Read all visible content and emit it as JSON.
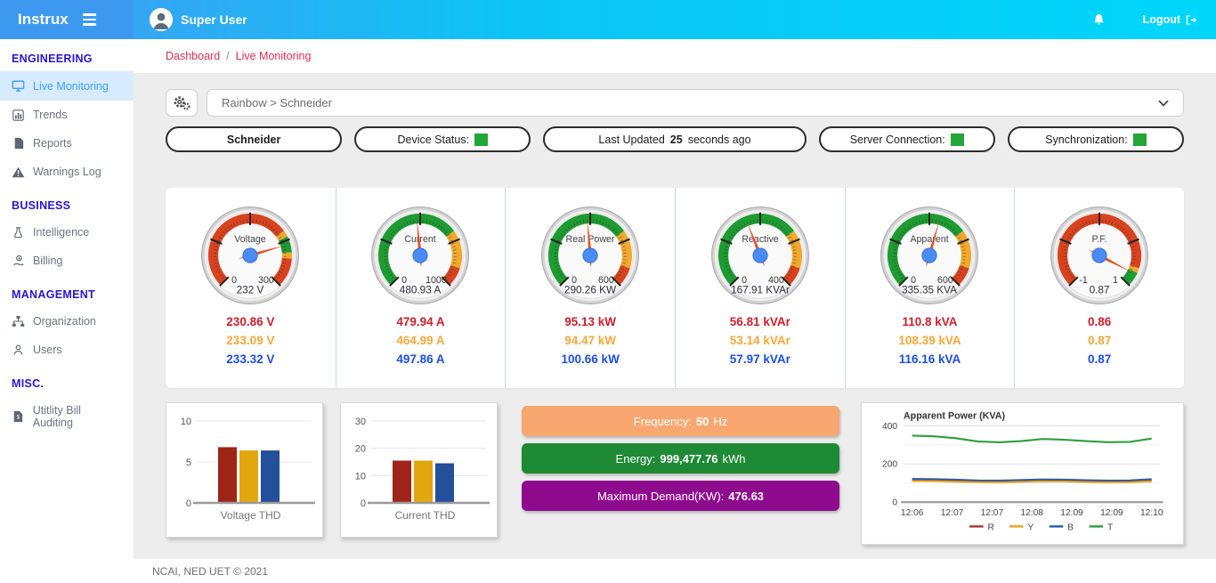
{
  "header": {
    "brand": "Instrux",
    "user_name": "Super User",
    "logout_label": "Logout"
  },
  "sidebar": {
    "sections": [
      {
        "title": "ENGINEERING",
        "items": [
          {
            "label": "Live Monitoring",
            "icon": "monitor-icon",
            "active": true
          },
          {
            "label": "Trends",
            "icon": "bar-chart-icon",
            "active": false
          },
          {
            "label": "Reports",
            "icon": "file-icon",
            "active": false
          },
          {
            "label": "Warnings Log",
            "icon": "warning-icon",
            "active": false
          }
        ]
      },
      {
        "title": "BUSINESS",
        "items": [
          {
            "label": "Intelligence",
            "icon": "flask-icon",
            "active": false
          },
          {
            "label": "Billing",
            "icon": "billing-icon",
            "active": false
          }
        ]
      },
      {
        "title": "MANAGEMENT",
        "items": [
          {
            "label": "Organization",
            "icon": "sitemap-icon",
            "active": false
          },
          {
            "label": "Users",
            "icon": "user-icon",
            "active": false
          }
        ]
      },
      {
        "title": "MISC.",
        "items": [
          {
            "label": "Utitlity Bill Auditing",
            "icon": "invoice-icon",
            "active": false
          }
        ]
      }
    ]
  },
  "breadcrumb": {
    "items": [
      "Dashboard",
      "Live Monitoring"
    ],
    "separator": "/"
  },
  "toolbar": {
    "selected_device": "Rainbow > Schneider"
  },
  "status_color": "#23A638",
  "pills": [
    {
      "bold": "Schneider",
      "indicator": false
    },
    {
      "prefix": "Device Status:",
      "indicator": true
    },
    {
      "prefix": "Last Updated",
      "bold": "25",
      "suffix": "seconds ago",
      "indicator": false,
      "wide": true
    },
    {
      "prefix": "Server Connection:",
      "indicator": true
    },
    {
      "prefix": "Synchronization:",
      "indicator": true
    }
  ],
  "reading_colors": [
    "#CE1F2A",
    "#F6A83B",
    "#1D4EDB"
  ],
  "gauges": [
    {
      "name": "Voltage",
      "min": 0,
      "max": 300,
      "value": 232,
      "display": "232 V",
      "min_label": "0",
      "max_label": "300",
      "zones": [
        {
          "from": 0,
          "to": 210,
          "color": "#D8431F"
        },
        {
          "from": 210,
          "to": 220,
          "color": "#F0A82D"
        },
        {
          "from": 220,
          "to": 245,
          "color": "#1E9B32"
        },
        {
          "from": 245,
          "to": 255,
          "color": "#F0A82D"
        },
        {
          "from": 255,
          "to": 300,
          "color": "#D8431F"
        }
      ],
      "readings": [
        "230.86 V",
        "233.09 V",
        "233.32 V"
      ]
    },
    {
      "name": "Current",
      "min": 0,
      "max": 1000,
      "value": 480.93,
      "display": "480.93 A",
      "min_label": "0",
      "max_label": "1000",
      "zones": [
        {
          "from": 0,
          "to": 700,
          "color": "#1E9B32"
        },
        {
          "from": 700,
          "to": 900,
          "color": "#F0A82D"
        },
        {
          "from": 900,
          "to": 1000,
          "color": "#D8431F"
        }
      ],
      "readings": [
        "479.94 A",
        "464.99 A",
        "497.86 A"
      ]
    },
    {
      "name": "Real Power",
      "min": 0,
      "max": 600,
      "value": 290.26,
      "display": "290.26 KW",
      "min_label": "0",
      "max_label": "600",
      "zones": [
        {
          "from": 0,
          "to": 420,
          "color": "#1E9B32"
        },
        {
          "from": 420,
          "to": 540,
          "color": "#F0A82D"
        },
        {
          "from": 540,
          "to": 600,
          "color": "#D8431F"
        }
      ],
      "readings": [
        "95.13 kW",
        "94.47 kW",
        "100.66 kW"
      ]
    },
    {
      "name": "Reactive",
      "min": 0,
      "max": 400,
      "value": 167.91,
      "display": "167.91 KVAr",
      "min_label": "0",
      "max_label": "400",
      "zones": [
        {
          "from": 0,
          "to": 280,
          "color": "#1E9B32"
        },
        {
          "from": 280,
          "to": 360,
          "color": "#F0A82D"
        },
        {
          "from": 360,
          "to": 400,
          "color": "#D8431F"
        }
      ],
      "readings": [
        "56.81 kVAr",
        "53.14 kVAr",
        "57.97 kVAr"
      ]
    },
    {
      "name": "Apparent",
      "min": 0,
      "max": 600,
      "value": 335.35,
      "display": "335.35 KVA",
      "min_label": "0",
      "max_label": "600",
      "zones": [
        {
          "from": 0,
          "to": 420,
          "color": "#1E9B32"
        },
        {
          "from": 420,
          "to": 540,
          "color": "#F0A82D"
        },
        {
          "from": 540,
          "to": 600,
          "color": "#D8431F"
        }
      ],
      "readings": [
        "110.8 kVA",
        "108.39 kVA",
        "116.16 kVA"
      ]
    },
    {
      "name": "P.F.",
      "min": -1,
      "max": 1,
      "value": 0.87,
      "display": "0.87",
      "min_label": "-1",
      "max_label": "1",
      "zones": [
        {
          "from": -1,
          "to": 0.8,
          "color": "#D8431F"
        },
        {
          "from": 0.8,
          "to": 0.85,
          "color": "#F0A82D"
        },
        {
          "from": 0.85,
          "to": 1,
          "color": "#1E9B32"
        }
      ],
      "readings": [
        "0.86",
        "0.87",
        "0.87"
      ]
    }
  ],
  "stat_bars": [
    {
      "label": "Frequency:",
      "value": "50",
      "suffix": "Hz",
      "color": "#F8A770"
    },
    {
      "label": "Energy:",
      "value": "999,477.76",
      "suffix": "kWh",
      "color": "#1F8A35"
    },
    {
      "label": "Maximum Demand(KW):",
      "value": "476.63",
      "suffix": "",
      "color": "#8E0B8E"
    }
  ],
  "chart_data": [
    {
      "id": "voltage_thd",
      "type": "bar",
      "title": "Voltage THD",
      "categories": [
        "R",
        "Y",
        "B"
      ],
      "values": [
        6.8,
        6.4,
        6.4
      ],
      "colors": [
        "#9E241A",
        "#E2A60F",
        "#234F9B"
      ],
      "yticks": [
        0,
        5,
        10
      ],
      "ylim": [
        0,
        10
      ],
      "grid": true
    },
    {
      "id": "current_thd",
      "type": "bar",
      "title": "Current THD",
      "categories": [
        "R",
        "Y",
        "B"
      ],
      "values": [
        15.5,
        15.5,
        14.5
      ],
      "colors": [
        "#9E241A",
        "#E2A60F",
        "#234F9B"
      ],
      "yticks": [
        0,
        10,
        20,
        30
      ],
      "ylim": [
        0,
        30
      ],
      "grid": true
    },
    {
      "id": "apparent_power",
      "type": "line",
      "title": "Apparent Power (KVA)",
      "x_labels": [
        "12:06",
        "12:07",
        "12:07",
        "12:08",
        "12:09",
        "12:09",
        "12:10"
      ],
      "ylim": [
        0,
        400
      ],
      "yticks": [
        0,
        200,
        400
      ],
      "legend_position": "bottom",
      "series": [
        {
          "name": "R",
          "color": "#A63A30",
          "values": [
            115,
            114,
            111,
            108,
            107,
            110,
            112,
            111,
            108,
            107,
            108,
            113
          ]
        },
        {
          "name": "Y",
          "color": "#E8A41B",
          "values": [
            111,
            110,
            107,
            104,
            103,
            106,
            109,
            108,
            105,
            103,
            104,
            109
          ]
        },
        {
          "name": "B",
          "color": "#2A5CAA",
          "values": [
            122,
            121,
            118,
            114,
            113,
            116,
            119,
            118,
            115,
            113,
            114,
            120
          ]
        },
        {
          "name": "T",
          "color": "#2E9E3F",
          "values": [
            348,
            345,
            335,
            318,
            313,
            320,
            331,
            327,
            320,
            314,
            316,
            333
          ]
        }
      ]
    }
  ],
  "footer": {
    "text": "NCAI, NED UET © 2021"
  }
}
